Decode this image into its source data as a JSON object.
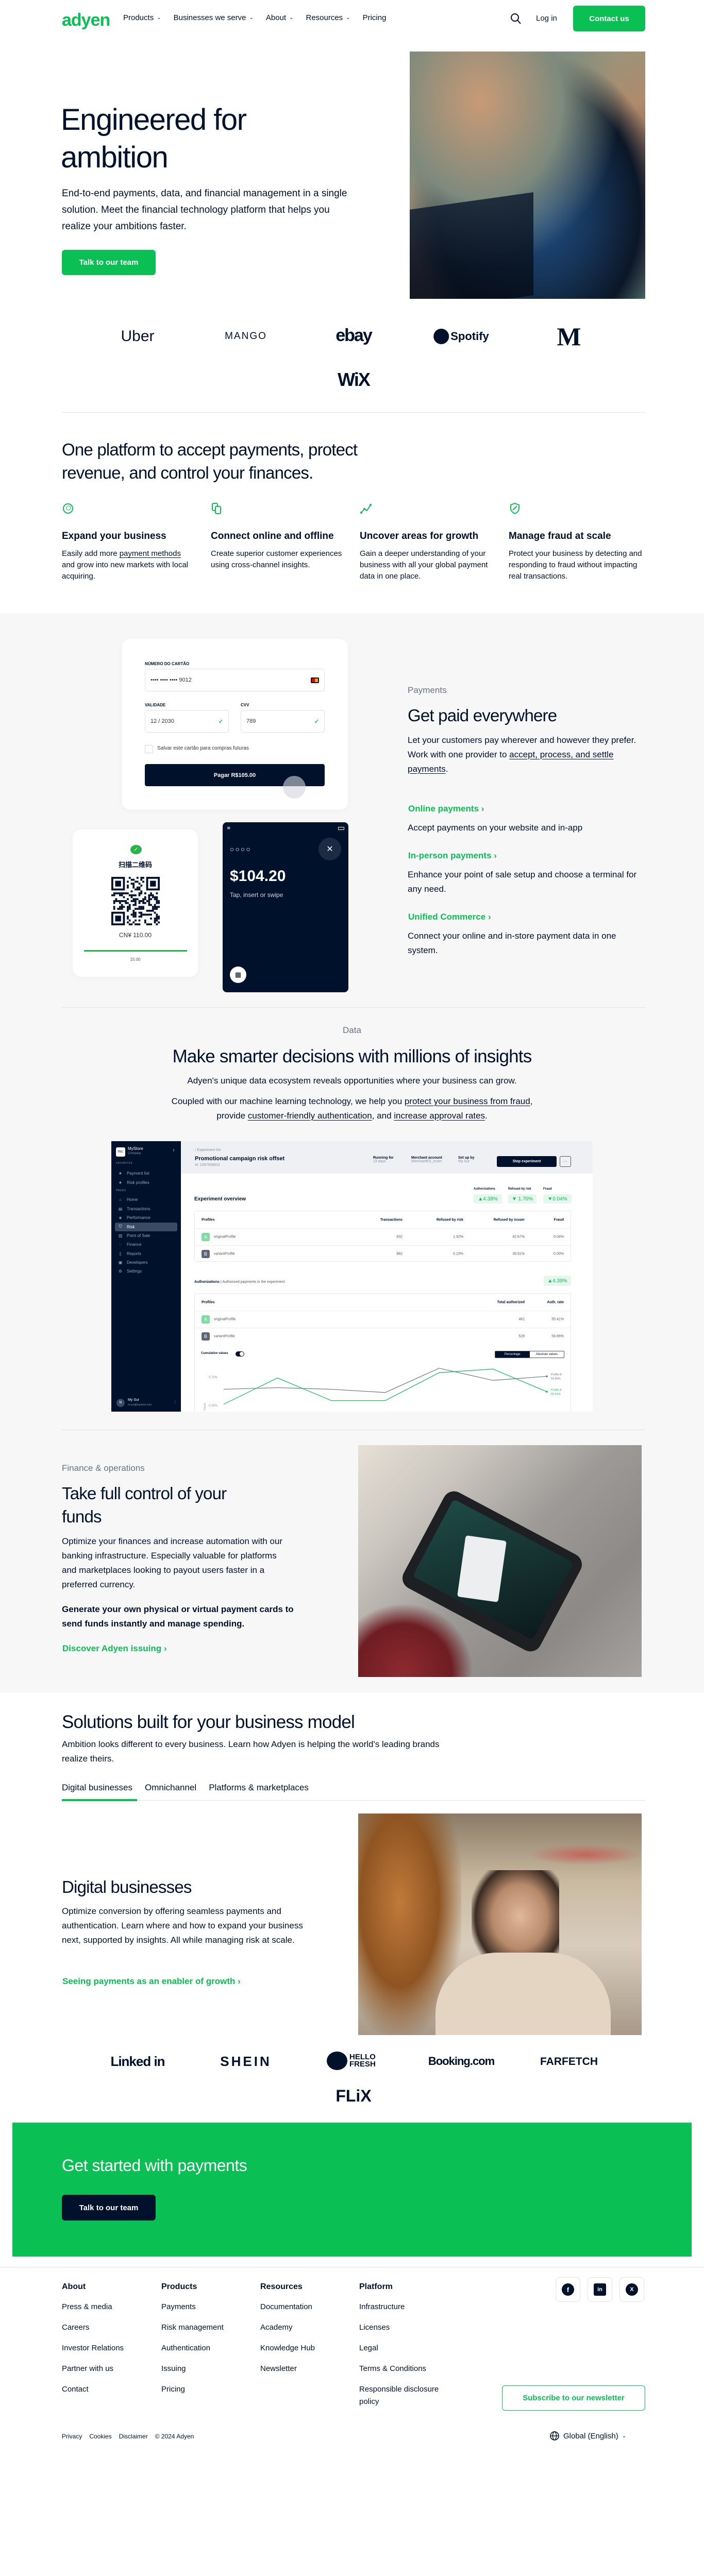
{
  "colors": {
    "brand_green": "#0abf53",
    "navy": "#00112c",
    "section_gray": "#f7f7f8"
  },
  "nav": {
    "logo": "adyen",
    "items": [
      {
        "label": "Products",
        "has_dropdown": true
      },
      {
        "label": "Businesses we serve",
        "has_dropdown": true
      },
      {
        "label": "About",
        "has_dropdown": true
      },
      {
        "label": "Resources",
        "has_dropdown": true
      },
      {
        "label": "Pricing",
        "has_dropdown": false
      }
    ],
    "search_icon": "search-icon",
    "login": "Log in",
    "contact": "Contact us"
  },
  "hero": {
    "title_line1": "Engineered for",
    "title_line2": "ambition",
    "text": "End-to-end payments, data, and financial management in a single solution. Meet the financial technology platform that helps you realize your ambitions faster.",
    "cta": "Talk to our team"
  },
  "logos_top": [
    "Uber",
    "MANGO",
    "ebay",
    "Spotify",
    "M",
    "WiX"
  ],
  "platform": {
    "title": "One platform to accept payments, protect revenue, and control your finances.",
    "features": [
      {
        "icon": "globe-icon",
        "title": "Expand your business",
        "pre": "Easily add more ",
        "link": "payment methods",
        "post": " and grow into new markets with local acquiring."
      },
      {
        "icon": "devices-icon",
        "title": "Connect online and offline",
        "pre": "Create superior customer experiences using cross-channel insights.",
        "link": "",
        "post": ""
      },
      {
        "icon": "graph-icon",
        "title": "Uncover areas for growth",
        "pre": "Gain a deeper understanding of your business with all your global payment data in one place.",
        "link": "",
        "post": ""
      },
      {
        "icon": "shield-icon",
        "title": "Manage fraud at scale",
        "pre": "Protect your business by detecting and responding to fraud without impacting real transactions.",
        "link": "",
        "post": ""
      }
    ]
  },
  "payments": {
    "card_form": {
      "card_label": "NÚMERO DO CARTÃO",
      "card_value": "•••• •••• •••• 9012",
      "expiry_label": "VALIDADE",
      "expiry_value": "12 / 2030",
      "cvv_label": "CVV",
      "cvv_value": "789",
      "save_label": "Salvar este cartão para compras futuras",
      "pay_button": "Pagar R$105.00"
    },
    "qr_card": {
      "title": "扫描二维码",
      "amount": "CN¥ 110.00",
      "timer": "15:00",
      "progress": 1.0
    },
    "terminal": {
      "pin": "○○○○",
      "amount": "$104.20",
      "hint": "Tap, insert or swipe"
    },
    "eyebrow": "Payments",
    "title": "Get paid everywhere",
    "text_pre": "Let your customers pay wherever and however they prefer. Work with one provider to ",
    "text_link": "accept, process, and settle payments",
    "text_post": ".",
    "links": [
      {
        "label": "Online payments",
        "desc": "Accept payments on your website and in-app"
      },
      {
        "label": "In-person payments",
        "desc": "Enhance your point of sale setup and choose a terminal for any need."
      },
      {
        "label": "Unified Commerce",
        "desc": "Connect your online and in-store payment data in one system."
      }
    ]
  },
  "data_section": {
    "eyebrow": "Data",
    "title": "Make smarter decisions with millions of insights",
    "p1": "Adyen's unique data ecosystem reveals opportunities where your business can grow.",
    "p2_pre": "Coupled with our machine learning technology, we help you ",
    "p2_link1": "protect your business from fraud",
    "p2_mid1": ", provide ",
    "p2_link2": "customer-friendly authentication",
    "p2_mid2": ", and ",
    "p2_link3": "increase approval rates",
    "p2_post": "."
  },
  "dashboard": {
    "store": {
      "logo": "ms.",
      "name": "MyStore",
      "type": "Company"
    },
    "favorites_label": "FAVORITES",
    "favorites": [
      "Payment list",
      "Risk profiles"
    ],
    "pages_label": "PAGES",
    "pages": [
      {
        "label": "Home",
        "icon": "home-icon"
      },
      {
        "label": "Transactions",
        "icon": "table-icon"
      },
      {
        "label": "Performance",
        "icon": "diamond-icon"
      },
      {
        "label": "Risk",
        "icon": "shield-icon",
        "active": true
      },
      {
        "label": "Point of Sale",
        "icon": "store-icon"
      },
      {
        "label": "Finance",
        "icon": "coins-icon"
      },
      {
        "label": "Reports",
        "icon": "document-icon"
      },
      {
        "label": "Developers",
        "icon": "terminal-icon"
      },
      {
        "label": "Settings",
        "icon": "gear-icon"
      }
    ],
    "user": {
      "initial": "N",
      "name": "My Sur",
      "email": "m.sur@mystore.com"
    },
    "back": "Experiment list",
    "title": "Promotional campaign risk offset",
    "id": "Id: 1097958810",
    "meta": [
      {
        "label": "Running for",
        "value": "23 days"
      },
      {
        "label": "Merchant account",
        "value": "MerchantES_ecom"
      },
      {
        "label": "Set up by",
        "value": "My Sur"
      }
    ],
    "stop_button": "Stop experiment",
    "more_button": "···",
    "overview_title": "Experiment overview",
    "kpis": [
      {
        "label": "Authorizations",
        "value": "▲4.39%"
      },
      {
        "label": "Refused by risk",
        "value": "▼ 1.70%"
      },
      {
        "label": "Fraud",
        "value": "▼0.04%"
      }
    ],
    "table1": {
      "headers": [
        "Profiles",
        "Transactions",
        "Refused by risk",
        "Refused by issuer",
        "Fraud"
      ],
      "rows": [
        {
          "badge": "A",
          "name": "originalProfile",
          "cells": [
            "832",
            "1.92%",
            "42.67%",
            "0.04%"
          ]
        },
        {
          "badge": "B",
          "name": "variantProfile",
          "cells": [
            "882",
            "0.23%",
            "39.91%",
            "0.00%"
          ]
        }
      ]
    },
    "auth_title": "Authorizations",
    "auth_sub": "| Authorized payments in the experiment",
    "auth_badge": "▲4.39%",
    "table2": {
      "headers": [
        "Profiles",
        "Total authorized",
        "Auth. rate"
      ],
      "rows": [
        {
          "badge": "A",
          "name": "originalProfile",
          "cells": [
            "461",
            "55.41%"
          ]
        },
        {
          "badge": "B",
          "name": "variantProfile",
          "cells": [
            "528",
            "59.86%"
          ]
        }
      ]
    },
    "cumulative_label": "Cumulative values",
    "cumulative_on": true,
    "segments": [
      "Percentage",
      "Absolute values"
    ],
    "segment_selected": "Percentage",
    "chart": {
      "type": "line",
      "ylabel": "Fraud",
      "y_ticks": [
        "0.70%",
        "0.35%"
      ],
      "y_tick_values": [
        0.7,
        0.35
      ],
      "series": [
        {
          "name": "Profile B",
          "value_label": "59.86%",
          "color": "#6b7280",
          "values": [
            0.55,
            0.57,
            0.55,
            0.51,
            0.81,
            0.66,
            0.71
          ]
        },
        {
          "name": "Profile A",
          "value_label": "55.41%",
          "color": "#0abf53",
          "values": [
            0.365,
            0.69,
            0.41,
            0.41,
            0.755,
            0.8,
            0.52
          ]
        }
      ]
    }
  },
  "finance": {
    "eyebrow": "Finance & operations",
    "title": "Take full control of your funds",
    "text": "Optimize your finances and increase automation with our banking infrastructure. Especially valuable for platforms and marketplaces looking to payout users faster in a preferred currency.",
    "bold": "Generate your own physical or virtual payment cards to send funds instantly and manage spending.",
    "link": "Discover Adyen issuing"
  },
  "solutions": {
    "title": "Solutions built for your business model",
    "text": "Ambition looks different to every business. Learn how Adyen is helping the world's leading brands realize theirs.",
    "tabs": [
      "Digital businesses",
      "Omnichannel",
      "Platforms & marketplaces"
    ],
    "active_tab": "Digital businesses",
    "panel": {
      "title": "Digital businesses",
      "text": "Optimize conversion by offering seamless payments and authentication. Learn where and how to expand your business next, supported by insights. All while managing risk at scale.",
      "link": "Seeing payments as an enabler of growth"
    }
  },
  "logos_bottom": [
    "Linked in",
    "SHEIN",
    "HELLO FRESH",
    "Booking.com",
    "FARFETCH",
    "FLiX"
  ],
  "cta_band": {
    "title": "Get started with payments",
    "button": "Talk to our team"
  },
  "footer": {
    "columns": [
      {
        "title": "About",
        "items": [
          "Press & media",
          "Careers",
          "Investor Relations",
          "Partner with us",
          "Contact"
        ]
      },
      {
        "title": "Products",
        "items": [
          "Payments",
          "Risk management",
          "Authentication",
          "Issuing",
          "Pricing"
        ]
      },
      {
        "title": "Resources",
        "items": [
          "Documentation",
          "Academy",
          "Knowledge Hub",
          "Newsletter"
        ]
      },
      {
        "title": "Platform",
        "items": [
          "Infrastructure",
          "Licenses",
          "Legal",
          "Terms & Conditions",
          "Responsible disclosure policy"
        ]
      }
    ],
    "social": [
      {
        "icon": "facebook-icon",
        "glyph": "f"
      },
      {
        "icon": "linkedin-icon",
        "glyph": "in"
      },
      {
        "icon": "x-icon",
        "glyph": "X"
      }
    ],
    "subscribe": "Subscribe to our newsletter",
    "legal": [
      "Privacy",
      "Cookies",
      "Disclaimer",
      "© 2024 Adyen"
    ],
    "language": "Global (English)"
  }
}
